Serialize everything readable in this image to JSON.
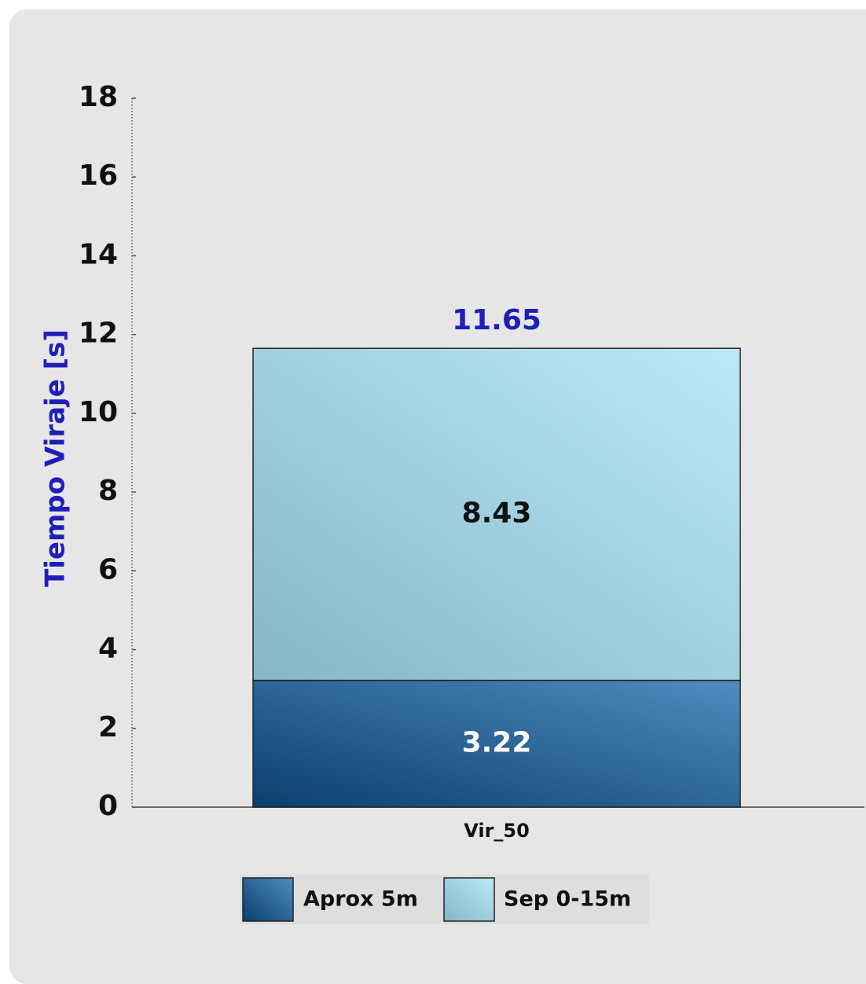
{
  "chart_data": {
    "type": "bar",
    "stacked": true,
    "title": "",
    "xlabel": "",
    "ylabel": "Tiempo Viraje [s]",
    "ylim": [
      0,
      18
    ],
    "yticks": [
      0,
      2,
      4,
      6,
      8,
      10,
      12,
      14,
      16,
      18
    ],
    "categories": [
      "Vir_50"
    ],
    "series": [
      {
        "name": "Aprox 5m",
        "values": [
          3.22
        ],
        "labels": [
          "3.22"
        ],
        "color_light": "#4f8cc0",
        "color_dark": "#0b3f6e",
        "label_color": "#ffffff"
      },
      {
        "name": "Sep 0-15m",
        "values": [
          8.43
        ],
        "labels": [
          "8.43"
        ],
        "color_light": "#bce9f6",
        "color_dark": "#84b6c9",
        "label_color": "#111111"
      }
    ],
    "totals": [
      "11.65"
    ],
    "total_color": "#1f1fb8",
    "ylabel_color": "#1f1fb8",
    "grid": false,
    "legend_position": "bottom"
  }
}
